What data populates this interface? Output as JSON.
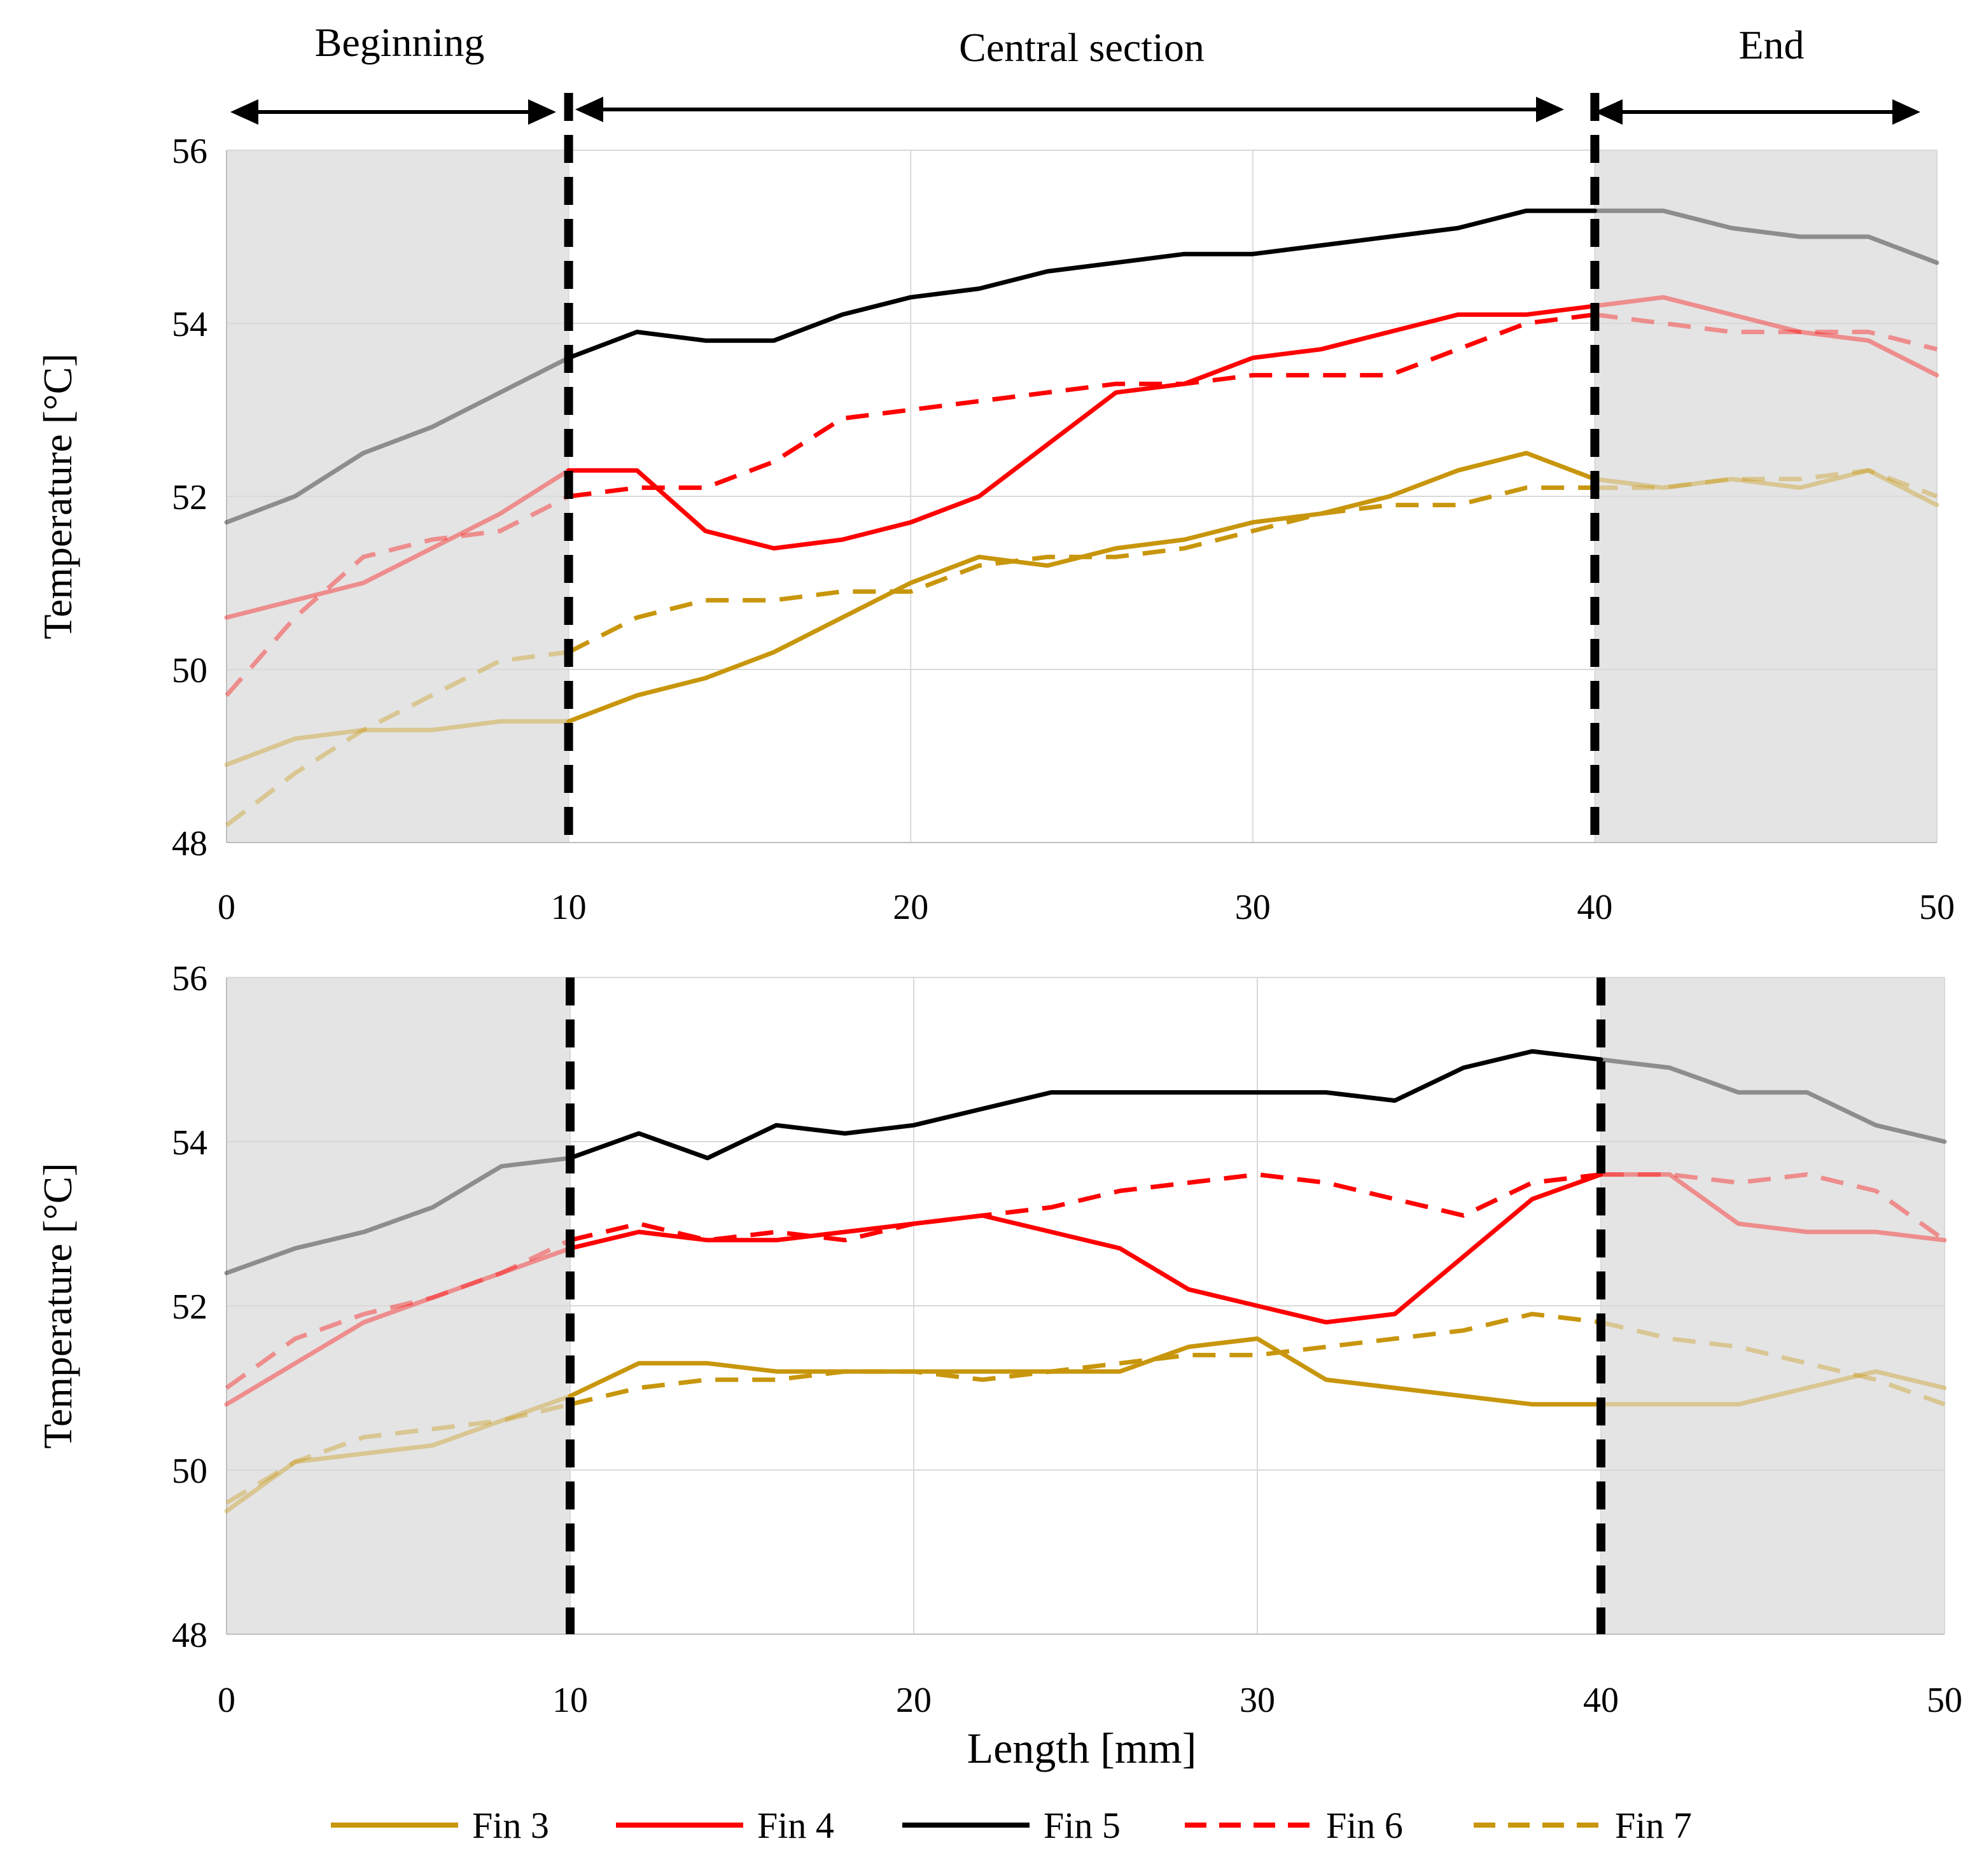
{
  "annotations": {
    "beginning": "Beginning",
    "central": "Central section",
    "end": "End"
  },
  "legend": [
    {
      "label": "Fin 3",
      "color": "#C8960C",
      "dash": false
    },
    {
      "label": "Fin 4",
      "color": "#FF0000",
      "dash": false
    },
    {
      "label": "Fin 5",
      "color": "#000000",
      "dash": false
    },
    {
      "label": "Fin 6",
      "color": "#FF0000",
      "dash": true
    },
    {
      "label": "Fin 7",
      "color": "#C8960C",
      "dash": true
    }
  ],
  "chart_data": [
    {
      "type": "line",
      "xlabel": "",
      "ylabel": "Temperature [°C]",
      "xlim": [
        0,
        50
      ],
      "ylim": [
        48,
        56
      ],
      "xticks": [
        0,
        10,
        20,
        30,
        40,
        50
      ],
      "yticks": [
        48,
        50,
        52,
        54,
        56
      ],
      "shaded_x_ranges": [
        [
          0,
          10
        ],
        [
          40,
          50
        ]
      ],
      "dashed_vlines_x": [
        10,
        40
      ],
      "x": [
        0,
        2,
        4,
        6,
        8,
        10,
        12,
        14,
        16,
        18,
        20,
        22,
        24,
        26,
        28,
        30,
        32,
        34,
        36,
        38,
        40,
        42,
        44,
        46,
        48,
        50
      ],
      "series": [
        {
          "name": "Fin 3",
          "color": "#C8960C",
          "dash": false,
          "values": [
            48.9,
            49.2,
            49.3,
            49.3,
            49.4,
            49.4,
            49.7,
            49.9,
            50.2,
            50.6,
            51.0,
            51.3,
            51.2,
            51.4,
            51.5,
            51.7,
            51.8,
            52.0,
            52.3,
            52.5,
            52.2,
            52.1,
            52.2,
            52.1,
            52.3,
            51.9
          ]
        },
        {
          "name": "Fin 4",
          "color": "#FF0000",
          "dash": false,
          "values": [
            50.6,
            50.8,
            51.0,
            51.4,
            51.8,
            52.3,
            52.3,
            51.6,
            51.4,
            51.5,
            51.7,
            52.0,
            52.6,
            53.2,
            53.3,
            53.6,
            53.7,
            53.9,
            54.1,
            54.1,
            54.2,
            54.3,
            54.1,
            53.9,
            53.8,
            53.4
          ]
        },
        {
          "name": "Fin 5",
          "color": "#000000",
          "dash": false,
          "values": [
            51.7,
            52.0,
            52.5,
            52.8,
            53.2,
            53.6,
            53.9,
            53.8,
            53.8,
            54.1,
            54.3,
            54.4,
            54.6,
            54.7,
            54.8,
            54.8,
            54.9,
            55.0,
            55.1,
            55.3,
            55.3,
            55.3,
            55.1,
            55.0,
            55.0,
            54.7
          ]
        },
        {
          "name": "Fin 6",
          "color": "#FF0000",
          "dash": true,
          "values": [
            49.7,
            50.6,
            51.3,
            51.5,
            51.6,
            52.0,
            52.1,
            52.1,
            52.4,
            52.9,
            53.0,
            53.1,
            53.2,
            53.3,
            53.3,
            53.4,
            53.4,
            53.4,
            53.7,
            54.0,
            54.1,
            54.0,
            53.9,
            53.9,
            53.9,
            53.7
          ]
        },
        {
          "name": "Fin 7",
          "color": "#C8960C",
          "dash": true,
          "values": [
            48.2,
            48.8,
            49.3,
            49.7,
            50.1,
            50.2,
            50.6,
            50.8,
            50.8,
            50.9,
            50.9,
            51.2,
            51.3,
            51.3,
            51.4,
            51.6,
            51.8,
            51.9,
            51.9,
            52.1,
            52.1,
            52.1,
            52.2,
            52.2,
            52.3,
            52.0
          ]
        }
      ]
    },
    {
      "type": "line",
      "xlabel": "Length [mm]",
      "ylabel": "Temperature [°C]",
      "xlim": [
        0,
        50
      ],
      "ylim": [
        48,
        56
      ],
      "xticks": [
        0,
        10,
        20,
        30,
        40,
        50
      ],
      "yticks": [
        48,
        50,
        52,
        54,
        56
      ],
      "shaded_x_ranges": [
        [
          0,
          10
        ],
        [
          40,
          50
        ]
      ],
      "dashed_vlines_x": [
        10,
        40
      ],
      "x": [
        0,
        2,
        4,
        6,
        8,
        10,
        12,
        14,
        16,
        18,
        20,
        22,
        24,
        26,
        28,
        30,
        32,
        34,
        36,
        38,
        40,
        42,
        44,
        46,
        48,
        50
      ],
      "series": [
        {
          "name": "Fin 3",
          "color": "#C8960C",
          "dash": false,
          "values": [
            49.5,
            50.1,
            50.2,
            50.3,
            50.6,
            50.9,
            51.3,
            51.3,
            51.2,
            51.2,
            51.2,
            51.2,
            51.2,
            51.2,
            51.5,
            51.6,
            51.1,
            51.0,
            50.9,
            50.8,
            50.8,
            50.8,
            50.8,
            51.0,
            51.2,
            51.0
          ]
        },
        {
          "name": "Fin 4",
          "color": "#FF0000",
          "dash": false,
          "values": [
            50.8,
            51.3,
            51.8,
            52.1,
            52.4,
            52.7,
            52.9,
            52.8,
            52.8,
            52.9,
            53.0,
            53.1,
            52.9,
            52.7,
            52.2,
            52.0,
            51.8,
            51.9,
            52.6,
            53.3,
            53.6,
            53.6,
            53.0,
            52.9,
            52.9,
            52.8
          ]
        },
        {
          "name": "Fin 5",
          "color": "#000000",
          "dash": false,
          "values": [
            52.4,
            52.7,
            52.9,
            53.2,
            53.7,
            53.8,
            54.1,
            53.8,
            54.2,
            54.1,
            54.2,
            54.4,
            54.6,
            54.6,
            54.6,
            54.6,
            54.6,
            54.5,
            54.9,
            55.1,
            55.0,
            54.9,
            54.6,
            54.6,
            54.2,
            54.0
          ]
        },
        {
          "name": "Fin 6",
          "color": "#FF0000",
          "dash": true,
          "values": [
            51.0,
            51.6,
            51.9,
            52.1,
            52.4,
            52.8,
            53.0,
            52.8,
            52.9,
            52.8,
            53.0,
            53.1,
            53.2,
            53.4,
            53.5,
            53.6,
            53.5,
            53.3,
            53.1,
            53.5,
            53.6,
            53.6,
            53.5,
            53.6,
            53.4,
            52.8
          ]
        },
        {
          "name": "Fin 7",
          "color": "#C8960C",
          "dash": true,
          "values": [
            49.6,
            50.1,
            50.4,
            50.5,
            50.6,
            50.8,
            51.0,
            51.1,
            51.1,
            51.2,
            51.2,
            51.1,
            51.2,
            51.3,
            51.4,
            51.4,
            51.5,
            51.6,
            51.7,
            51.9,
            51.8,
            51.6,
            51.5,
            51.3,
            51.1,
            50.8
          ]
        }
      ]
    }
  ]
}
